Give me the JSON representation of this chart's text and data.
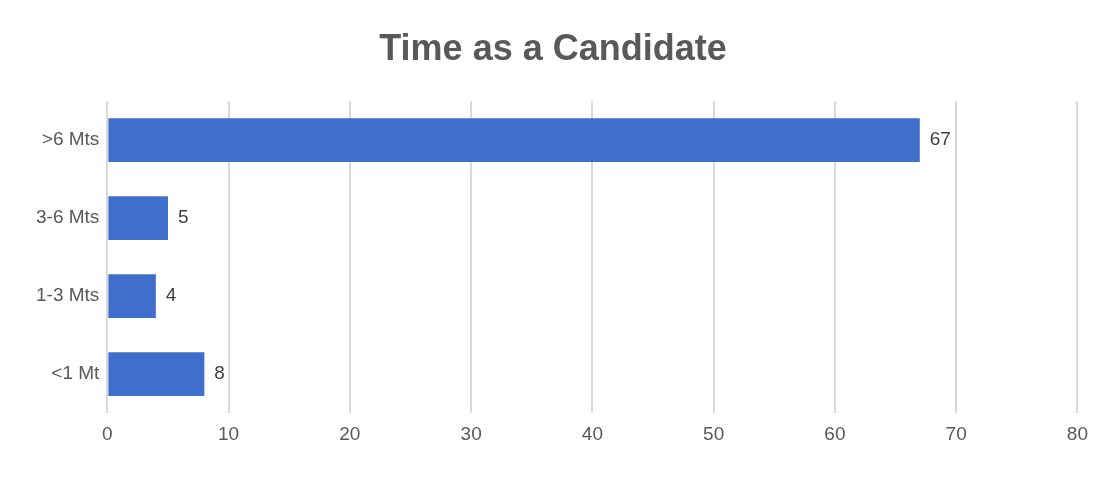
{
  "chart_data": {
    "type": "bar",
    "orientation": "horizontal",
    "title": "Time as a Candidate",
    "categories": [
      ">6 Mts",
      "3-6 Mts",
      "1-3 Mts",
      "<1 Mt"
    ],
    "values": [
      67,
      5,
      4,
      8
    ],
    "color": "#3f6fca",
    "xlim": [
      0,
      80
    ],
    "xticks": [
      0,
      10,
      20,
      30,
      40,
      50,
      60,
      70,
      80
    ],
    "grid": "x",
    "data_labels": true,
    "legend": false
  }
}
